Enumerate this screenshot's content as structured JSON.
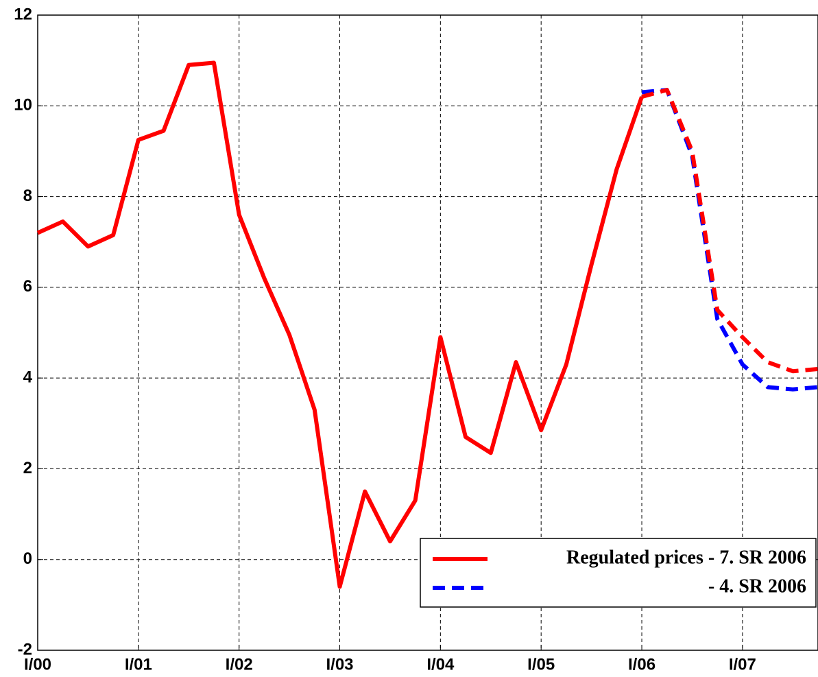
{
  "chart_data": {
    "type": "line",
    "categories": [
      "I/00",
      null,
      null,
      null,
      "I/01",
      null,
      null,
      null,
      "I/02",
      null,
      null,
      null,
      "I/03",
      null,
      null,
      null,
      "I/04",
      null,
      null,
      null,
      "I/05",
      null,
      null,
      null,
      "I/06",
      null,
      null,
      null,
      "I/07",
      null,
      null,
      null
    ],
    "series": [
      {
        "name": "Regulated prices - 7. SR 2006",
        "color": "#ff0000",
        "dash_from_index": 24,
        "values": [
          7.2,
          7.45,
          6.9,
          7.15,
          9.25,
          9.45,
          10.9,
          10.95,
          7.6,
          6.2,
          4.95,
          3.3,
          -0.6,
          1.5,
          0.4,
          1.3,
          4.9,
          2.7,
          2.35,
          4.35,
          2.85,
          4.3,
          6.5,
          8.6,
          10.2,
          10.35,
          9.0,
          5.5,
          4.9,
          4.35,
          4.15,
          4.2
        ]
      },
      {
        "name": "- 4. SR 2006",
        "color": "#0000ff",
        "dashed": true,
        "values": [
          null,
          null,
          null,
          null,
          null,
          null,
          null,
          null,
          null,
          null,
          null,
          null,
          null,
          null,
          null,
          null,
          null,
          null,
          null,
          null,
          null,
          null,
          null,
          null,
          10.3,
          10.35,
          8.9,
          5.3,
          4.3,
          3.8,
          3.75,
          3.8
        ]
      }
    ],
    "ylim": [
      -2,
      12
    ],
    "yticks": [
      -2,
      0,
      2,
      4,
      6,
      8,
      10,
      12
    ],
    "grid": true,
    "legend": "lower right"
  }
}
